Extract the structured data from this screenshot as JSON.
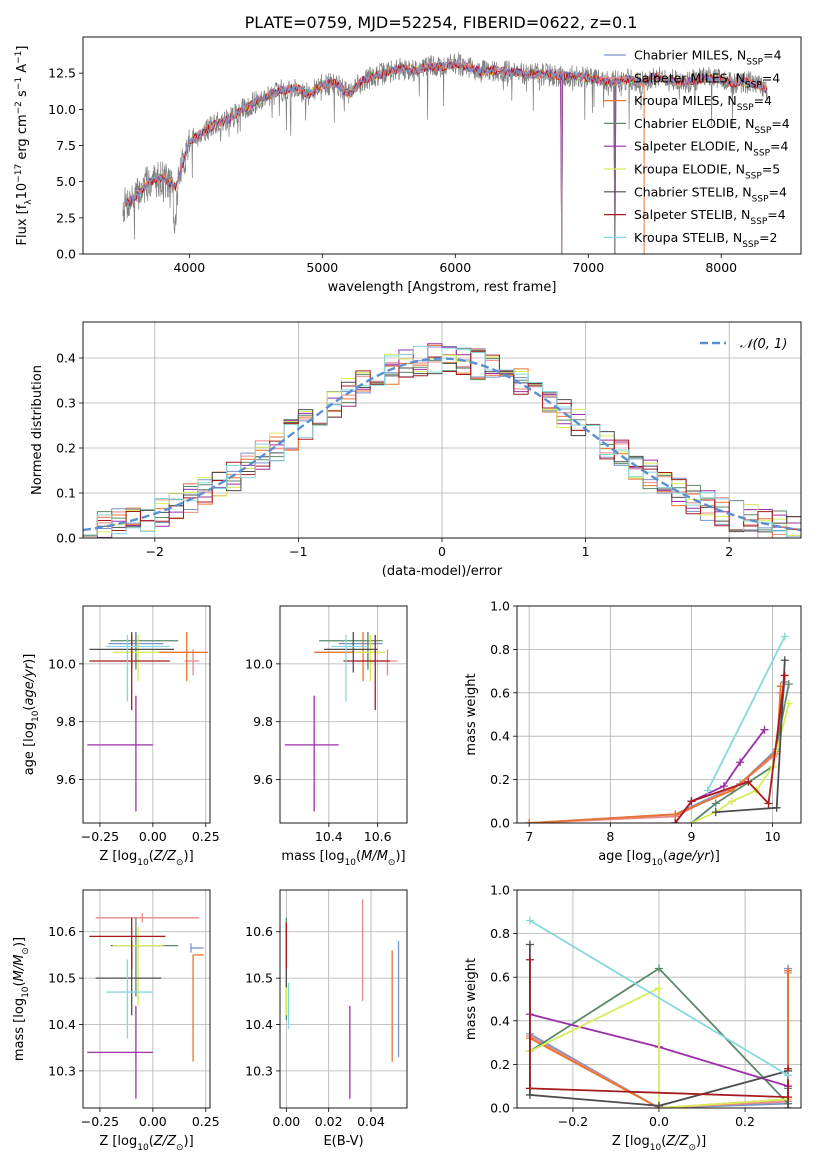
{
  "figure_title": "PLATE=0759, MJD=52254, FIBERID=0622, z=0.1",
  "colors": {
    "Chabrier MILES": "#7a93c9",
    "Salpeter MILES": "#e98a8a",
    "Kroupa MILES": "#e8742f",
    "Chabrier ELODIE": "#5a8a6a",
    "Salpeter ELODIE": "#9b2fa8",
    "Kroupa ELODIE": "#d6ec5a",
    "Chabrier STELIB": "#4d4d4d",
    "Salpeter STELIB": "#a81b1b",
    "Kroupa STELIB": "#86d8de",
    "gaussian": "#5b8fd1"
  },
  "chart_data": [
    {
      "id": "spectrum",
      "type": "line",
      "title": "PLATE=0759, MJD=52254, FIBERID=0622, z=0.1",
      "xlabel": "wavelength [Angstrom, rest frame]",
      "ylabel": "Flux [f_λ 10^-17 erg cm^-2 s^-1 A^-1]",
      "xlim": [
        3200,
        8600
      ],
      "ylim": [
        0,
        15
      ],
      "xticks": [
        4000,
        5000,
        6000,
        7000,
        8000
      ],
      "yticks": [
        0.0,
        2.5,
        5.0,
        7.5,
        10.0,
        12.5
      ],
      "legend": "right",
      "legend_entries": [
        "Chabrier MILES, N_SSP=4",
        "Salpeter MILES, N_SSP=4",
        "Kroupa MILES, N_SSP=4",
        "Chabrier ELODIE, N_SSP=4",
        "Salpeter ELODIE, N_SSP=4",
        "Kroupa ELODIE, N_SSP=5",
        "Chabrier STELIB, N_SSP=4",
        "Salpeter STELIB, N_SSP=4",
        "Kroupa STELIB, N_SSP=2"
      ],
      "data_envelope": {
        "x": [
          3500,
          3600,
          3700,
          3800,
          3900,
          4000,
          4100,
          4200,
          4300,
          4400,
          4500,
          4600,
          4700,
          4800,
          4900,
          5000,
          5100,
          5200,
          5300,
          5400,
          5500,
          5600,
          5700,
          5800,
          5900,
          6000,
          6100,
          6200,
          6300,
          6400,
          6500,
          6600,
          6700,
          6800,
          6900,
          7000,
          7100,
          7200,
          7300,
          7400,
          7500,
          7600,
          7700,
          7800,
          7900,
          8000,
          8100,
          8200,
          8300,
          8350
        ],
        "y": [
          3.3,
          4.0,
          5.0,
          5.3,
          4.6,
          7.8,
          8.4,
          9.0,
          9.3,
          10.0,
          10.5,
          11.0,
          11.3,
          11.5,
          11.0,
          11.7,
          11.8,
          11.0,
          12.0,
          12.3,
          12.6,
          12.8,
          12.7,
          13.0,
          12.9,
          13.2,
          12.9,
          12.6,
          12.7,
          12.6,
          12.5,
          12.4,
          12.4,
          12.3,
          12.3,
          12.2,
          12.0,
          11.9,
          12.1,
          11.8,
          12.3,
          12.0,
          11.9,
          12.0,
          12.2,
          12.0,
          11.8,
          11.9,
          11.6,
          11.3
        ]
      },
      "line_drops_to_zero_at": [
        6800,
        7200,
        7420
      ]
    },
    {
      "id": "residuals",
      "type": "line",
      "xlabel": "(data-model)/error",
      "ylabel": "Normed distribution",
      "xlim": [
        -2.5,
        2.5
      ],
      "ylim": [
        0,
        0.48
      ],
      "xticks": [
        -2,
        -1,
        0,
        1,
        2
      ],
      "yticks": [
        0.0,
        0.1,
        0.2,
        0.3,
        0.4
      ],
      "legend": "top-right",
      "legend_entries": [
        "𝒩(0, 1)"
      ],
      "gaussian": {
        "mean": 0,
        "sigma": 1
      }
    },
    {
      "id": "age_vs_Z",
      "type": "scatter",
      "xlabel": "Z [log10(Z/Z⊙)]",
      "ylabel": "age  [log10(age/yr)]",
      "xlim": [
        -0.33,
        0.27
      ],
      "ylim": [
        9.45,
        10.2
      ],
      "xticks": [
        -0.25,
        0.0,
        0.25
      ],
      "xtick_labels": [
        "−0.25",
        "0.00",
        "0.25"
      ],
      "yticks": [
        9.6,
        9.8,
        10.0
      ],
      "points": [
        {
          "model": "Chabrier MILES",
          "x": -0.08,
          "xerr": [
            0.13,
            0.13
          ],
          "y": 10.07,
          "yerr": [
            0.06,
            0.04
          ]
        },
        {
          "model": "Salpeter MILES",
          "x": 0.19,
          "xerr": [
            0.04,
            0.03
          ],
          "y": 10.01,
          "yerr": [
            0.05,
            0.04
          ]
        },
        {
          "model": "Kroupa MILES",
          "x": 0.16,
          "xerr": [
            0.14,
            0.1
          ],
          "y": 10.04,
          "yerr": [
            0.1,
            0.07
          ]
        },
        {
          "model": "Chabrier ELODIE",
          "x": -0.08,
          "xerr": [
            0.12,
            0.2
          ],
          "y": 10.08,
          "yerr": [
            0.1,
            0.03
          ]
        },
        {
          "model": "Salpeter ELODIE",
          "x": -0.08,
          "xerr": [
            0.23,
            0.08
          ],
          "y": 9.72,
          "yerr": [
            0.23,
            0.17
          ]
        },
        {
          "model": "Kroupa ELODIE",
          "x": -0.07,
          "xerr": [
            0.12,
            0.1
          ],
          "y": 10.04,
          "yerr": [
            0.1,
            0.06
          ]
        },
        {
          "model": "Chabrier STELIB",
          "x": -0.1,
          "xerr": [
            0.2,
            0.2
          ],
          "y": 10.05,
          "yerr": [
            0.08,
            0.06
          ]
        },
        {
          "model": "Salpeter STELIB",
          "x": -0.1,
          "xerr": [
            0.2,
            0.18
          ],
          "y": 10.01,
          "yerr": [
            0.17,
            0.09
          ]
        },
        {
          "model": "Kroupa STELIB",
          "x": -0.12,
          "xerr": [
            0.1,
            0.2
          ],
          "y": 10.06,
          "yerr": [
            0.19,
            0.04
          ]
        }
      ]
    },
    {
      "id": "age_vs_mass",
      "type": "scatter",
      "xlabel": "mass [log10(M/M⊙)]",
      "ylabel": "",
      "xlim": [
        10.2,
        10.72
      ],
      "ylim": [
        9.45,
        10.2
      ],
      "xticks": [
        10.4,
        10.6
      ],
      "yticks": [
        9.6,
        9.8,
        10.0
      ],
      "points": [
        {
          "model": "Chabrier MILES",
          "x": 10.56,
          "xerr": [
            0.12,
            0.06
          ],
          "y": 10.07,
          "yerr": [
            0.06,
            0.04
          ]
        },
        {
          "model": "Salpeter MILES",
          "x": 10.64,
          "xerr": [
            0.11,
            0.04
          ],
          "y": 10.01,
          "yerr": [
            0.05,
            0.04
          ]
        },
        {
          "model": "Kroupa MILES",
          "x": 10.54,
          "xerr": [
            0.2,
            0.07
          ],
          "y": 10.04,
          "yerr": [
            0.1,
            0.07
          ]
        },
        {
          "model": "Chabrier ELODIE",
          "x": 10.56,
          "xerr": [
            0.2,
            0.06
          ],
          "y": 10.08,
          "yerr": [
            0.1,
            0.03
          ]
        },
        {
          "model": "Salpeter ELODIE",
          "x": 10.34,
          "xerr": [
            0.12,
            0.1
          ],
          "y": 9.72,
          "yerr": [
            0.23,
            0.17
          ]
        },
        {
          "model": "Kroupa ELODIE",
          "x": 10.57,
          "xerr": [
            0.07,
            0.06
          ],
          "y": 10.04,
          "yerr": [
            0.1,
            0.06
          ]
        },
        {
          "model": "Chabrier STELIB",
          "x": 10.5,
          "xerr": [
            0.12,
            0.1
          ],
          "y": 10.05,
          "yerr": [
            0.08,
            0.06
          ]
        },
        {
          "model": "Salpeter STELIB",
          "x": 10.59,
          "xerr": [
            0.13,
            0.06
          ],
          "y": 10.01,
          "yerr": [
            0.17,
            0.09
          ]
        },
        {
          "model": "Kroupa STELIB",
          "x": 10.47,
          "xerr": [
            0.06,
            0.09
          ],
          "y": 10.06,
          "yerr": [
            0.19,
            0.04
          ]
        }
      ]
    },
    {
      "id": "weight_vs_age",
      "type": "line",
      "xlabel": "age  [log10(age/yr)]",
      "ylabel": "mass weight",
      "xlim": [
        6.85,
        10.35
      ],
      "ylim": [
        0,
        1
      ],
      "xticks": [
        7,
        8,
        9,
        10
      ],
      "yticks": [
        0.0,
        0.2,
        0.4,
        0.6,
        0.8,
        1.0
      ],
      "series": [
        {
          "model": "Chabrier MILES",
          "x": [
            7.0,
            8.8,
            9.6,
            10.05,
            10.15
          ],
          "y": [
            0.0,
            0.04,
            0.18,
            0.34,
            0.65
          ]
        },
        {
          "model": "Salpeter MILES",
          "x": [
            7.0,
            8.8,
            9.6,
            10.05,
            10.1
          ],
          "y": [
            0.0,
            0.03,
            0.18,
            0.32,
            0.6
          ]
        },
        {
          "model": "Kroupa MILES",
          "x": [
            7.0,
            8.8,
            9.5,
            10.05,
            10.1
          ],
          "y": [
            0.0,
            0.04,
            0.15,
            0.33,
            0.63
          ]
        },
        {
          "model": "Chabrier ELODIE",
          "x": [
            9.0,
            9.3,
            10.0,
            10.2
          ],
          "y": [
            0.0,
            0.09,
            0.26,
            0.64
          ]
        },
        {
          "model": "Salpeter ELODIE",
          "x": [
            8.8,
            9.0,
            9.4,
            9.6,
            9.9
          ],
          "y": [
            0.0,
            0.1,
            0.17,
            0.28,
            0.43
          ]
        },
        {
          "model": "Kroupa ELODIE",
          "x": [
            9.0,
            9.3,
            9.5,
            9.8,
            10.0,
            10.2
          ],
          "y": [
            0.0,
            0.05,
            0.1,
            0.15,
            0.26,
            0.55
          ]
        },
        {
          "model": "Chabrier STELIB",
          "x": [
            9.3,
            10.05,
            10.15
          ],
          "y": [
            0.05,
            0.07,
            0.75
          ]
        },
        {
          "model": "Salpeter STELIB",
          "x": [
            8.8,
            9.0,
            9.7,
            9.95,
            10.15
          ],
          "y": [
            0.0,
            0.1,
            0.19,
            0.09,
            0.68
          ]
        },
        {
          "model": "Kroupa STELIB",
          "x": [
            9.2,
            10.15
          ],
          "y": [
            0.15,
            0.86
          ]
        }
      ]
    },
    {
      "id": "mass_vs_Z",
      "type": "scatter",
      "xlabel": "Z [log10(Z/Z⊙)]",
      "ylabel": "mass [log10(M/M⊙)]",
      "xlim": [
        -0.33,
        0.27
      ],
      "ylim": [
        10.22,
        10.69
      ],
      "xticks": [
        -0.25,
        0.0,
        0.25
      ],
      "xtick_labels": [
        "−0.25",
        "0.00",
        "0.25"
      ],
      "yticks": [
        10.3,
        10.4,
        10.5,
        10.6
      ],
      "points": [
        {
          "model": "Chabrier MILES",
          "x": 0.18,
          "xerr": [
            0.0,
            0.06
          ],
          "y": 10.565,
          "yerr": [
            0.01,
            0.01
          ]
        },
        {
          "model": "Salpeter MILES",
          "x": -0.05,
          "xerr": [
            0.22,
            0.27
          ],
          "y": 10.63,
          "yerr": [
            0.01,
            0.01
          ]
        },
        {
          "model": "Kroupa MILES",
          "x": 0.19,
          "xerr": [
            0.0,
            0.05
          ],
          "y": 10.55,
          "yerr": [
            0.23,
            0.0
          ]
        },
        {
          "model": "Chabrier ELODIE",
          "x": -0.08,
          "xerr": [
            0.12,
            0.2
          ],
          "y": 10.57,
          "yerr": [
            0.11,
            0.06
          ]
        },
        {
          "model": "Salpeter ELODIE",
          "x": -0.08,
          "xerr": [
            0.23,
            0.08
          ],
          "y": 10.34,
          "yerr": [
            0.1,
            0.1
          ]
        },
        {
          "model": "Kroupa ELODIE",
          "x": -0.07,
          "xerr": [
            0.12,
            0.12
          ],
          "y": 10.57,
          "yerr": [
            0.13,
            0.04
          ]
        },
        {
          "model": "Chabrier STELIB",
          "x": -0.1,
          "xerr": [
            0.17,
            0.14
          ],
          "y": 10.5,
          "yerr": [
            0.08,
            0.08
          ]
        },
        {
          "model": "Salpeter STELIB",
          "x": -0.1,
          "xerr": [
            0.2,
            0.16
          ],
          "y": 10.59,
          "yerr": [
            0.07,
            0.04
          ]
        },
        {
          "model": "Kroupa STELIB",
          "x": -0.12,
          "xerr": [
            0.1,
            0.12
          ],
          "y": 10.47,
          "yerr": [
            0.1,
            0.07
          ]
        }
      ]
    },
    {
      "id": "mass_vs_EBV",
      "type": "scatter",
      "xlabel": "E(B-V)",
      "ylabel": "",
      "xlim": [
        -0.003,
        0.057
      ],
      "ylim": [
        10.22,
        10.69
      ],
      "xticks": [
        0.0,
        0.02,
        0.04
      ],
      "xtick_labels": [
        "0.00",
        "0.02",
        "0.04"
      ],
      "yticks": [
        10.3,
        10.4,
        10.5,
        10.6
      ],
      "points": [
        {
          "model": "Chabrier MILES",
          "x": 0.053,
          "xerr": [
            0,
            0
          ],
          "y": 10.46,
          "yerr": [
            0.13,
            0.12
          ]
        },
        {
          "model": "Salpeter MILES",
          "x": 0.036,
          "xerr": [
            0,
            0
          ],
          "y": 10.56,
          "yerr": [
            0.11,
            0.11
          ]
        },
        {
          "model": "Kroupa MILES",
          "x": 0.05,
          "xerr": [
            0,
            0
          ],
          "y": 10.44,
          "yerr": [
            0.12,
            0.12
          ]
        },
        {
          "model": "Chabrier ELODIE",
          "x": 0.0,
          "xerr": [
            0,
            0
          ],
          "y": 10.52,
          "yerr": [
            0.11,
            0.11
          ]
        },
        {
          "model": "Salpeter ELODIE",
          "x": 0.03,
          "xerr": [
            0,
            0
          ],
          "y": 10.34,
          "yerr": [
            0.1,
            0.1
          ]
        },
        {
          "model": "Kroupa ELODIE",
          "x": 0.0,
          "xerr": [
            0,
            0
          ],
          "y": 10.52,
          "yerr": [
            0.1,
            0.1
          ]
        },
        {
          "model": "Chabrier STELIB",
          "x": 0.0,
          "xerr": [
            0,
            0
          ],
          "y": 10.55,
          "yerr": [
            0.07,
            0.07
          ]
        },
        {
          "model": "Salpeter STELIB",
          "x": 0.0,
          "xerr": [
            0,
            0
          ],
          "y": 10.57,
          "yerr": [
            0.05,
            0.05
          ]
        },
        {
          "model": "Kroupa STELIB",
          "x": 0.001,
          "xerr": [
            0,
            0
          ],
          "y": 10.44,
          "yerr": [
            0.05,
            0.05
          ]
        }
      ]
    },
    {
      "id": "weight_vs_Z",
      "type": "line",
      "xlabel": "Z [log10(Z/Z⊙)]",
      "ylabel": "mass weight",
      "xlim": [
        -0.33,
        0.33
      ],
      "ylim": [
        0,
        1
      ],
      "xticks": [
        -0.2,
        0.0,
        0.2
      ],
      "xtick_labels": [
        "−0.2",
        "0.0",
        "0.2"
      ],
      "yticks": [
        0.0,
        0.2,
        0.4,
        0.6,
        0.8,
        1.0
      ],
      "series": [
        {
          "model": "Chabrier MILES",
          "x": [
            -0.3,
            0.0,
            0.3,
            0.3
          ],
          "y": [
            0.34,
            0.0,
            0.02,
            0.64
          ]
        },
        {
          "model": "Salpeter MILES",
          "x": [
            -0.3,
            0.0,
            0.3,
            0.3
          ],
          "y": [
            0.33,
            0.0,
            0.03,
            0.62
          ]
        },
        {
          "model": "Kroupa MILES",
          "x": [
            -0.3,
            0.0,
            0.3,
            0.3
          ],
          "y": [
            0.32,
            0.0,
            0.04,
            0.63
          ]
        },
        {
          "model": "Chabrier ELODIE",
          "x": [
            -0.3,
            0.0,
            0.3,
            0.3
          ],
          "y": [
            0.26,
            0.64,
            0.02,
            0.09
          ]
        },
        {
          "model": "Salpeter ELODIE",
          "x": [
            -0.3,
            0.0,
            0.3
          ],
          "y": [
            0.43,
            0.28,
            0.1
          ]
        },
        {
          "model": "Kroupa ELODIE",
          "x": [
            -0.3,
            0.0,
            0.0,
            0.3
          ],
          "y": [
            0.26,
            0.55,
            0.0,
            0.04
          ]
        },
        {
          "model": "Chabrier STELIB",
          "x": [
            -0.3,
            -0.3,
            0.0,
            0.3,
            0.3
          ],
          "y": [
            0.75,
            0.06,
            0.01,
            0.17,
            0.0
          ]
        },
        {
          "model": "Salpeter STELIB",
          "x": [
            -0.3,
            -0.3,
            0.3,
            0.3
          ],
          "y": [
            0.68,
            0.09,
            0.05,
            0.18
          ]
        },
        {
          "model": "Kroupa STELIB",
          "x": [
            -0.3,
            0.3
          ],
          "y": [
            0.86,
            0.15
          ]
        }
      ]
    }
  ]
}
